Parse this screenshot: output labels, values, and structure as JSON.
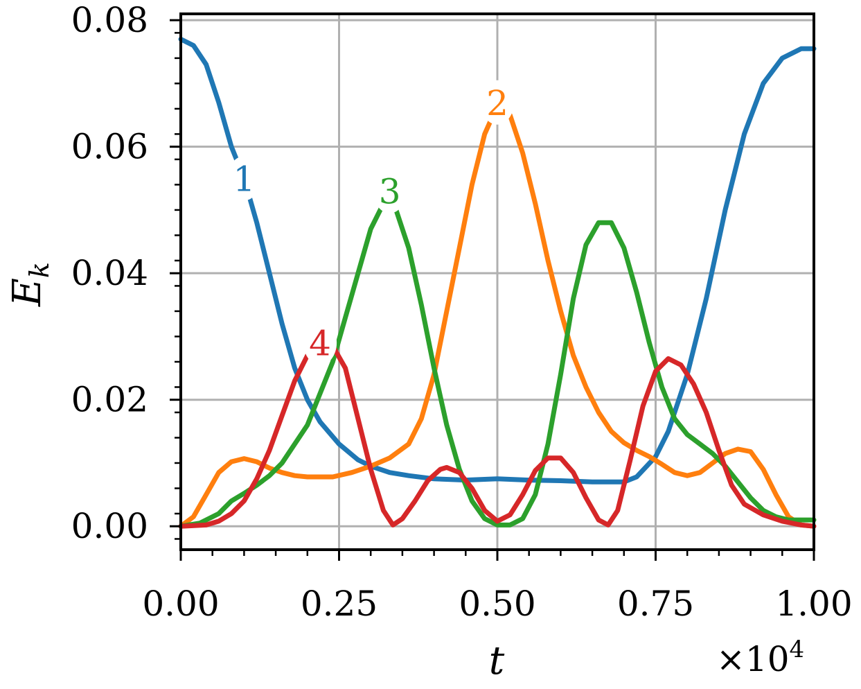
{
  "chart_data": {
    "type": "line",
    "xlabel": "t",
    "ylabel": "E",
    "ylabel_sub": "k",
    "x_multiplier": "×10",
    "x_multiplier_exp": "4",
    "xlim": [
      0,
      1.0
    ],
    "ylim": [
      -0.0037,
      0.081
    ],
    "x_ticks": [
      0.0,
      0.25,
      0.5,
      0.75,
      1.0
    ],
    "x_tick_labels": [
      "0.00",
      "0.25",
      "0.50",
      "0.75",
      "1.00"
    ],
    "y_ticks": [
      0.0,
      0.02,
      0.04,
      0.06,
      0.08
    ],
    "y_tick_labels": [
      "0.00",
      "0.02",
      "0.04",
      "0.06",
      "0.08"
    ],
    "grid": true,
    "series": [
      {
        "name": "1",
        "color": "#1f77b4",
        "label_at": [
          0.1,
          0.055
        ],
        "points": [
          [
            0.0,
            0.077
          ],
          [
            0.02,
            0.076
          ],
          [
            0.04,
            0.073
          ],
          [
            0.06,
            0.067
          ],
          [
            0.08,
            0.06
          ],
          [
            0.1,
            0.055
          ],
          [
            0.12,
            0.048
          ],
          [
            0.14,
            0.04
          ],
          [
            0.16,
            0.032
          ],
          [
            0.18,
            0.025
          ],
          [
            0.2,
            0.02
          ],
          [
            0.22,
            0.0165
          ],
          [
            0.25,
            0.013
          ],
          [
            0.28,
            0.0105
          ],
          [
            0.3,
            0.0095
          ],
          [
            0.33,
            0.0085
          ],
          [
            0.36,
            0.008
          ],
          [
            0.4,
            0.0075
          ],
          [
            0.45,
            0.0073
          ],
          [
            0.5,
            0.0075
          ],
          [
            0.55,
            0.0073
          ],
          [
            0.6,
            0.0072
          ],
          [
            0.65,
            0.007
          ],
          [
            0.7,
            0.007
          ],
          [
            0.72,
            0.0078
          ],
          [
            0.75,
            0.011
          ],
          [
            0.77,
            0.015
          ],
          [
            0.8,
            0.024
          ],
          [
            0.83,
            0.036
          ],
          [
            0.86,
            0.05
          ],
          [
            0.89,
            0.062
          ],
          [
            0.92,
            0.07
          ],
          [
            0.95,
            0.074
          ],
          [
            0.98,
            0.0755
          ],
          [
            1.0,
            0.0755
          ]
        ]
      },
      {
        "name": "2",
        "color": "#ff7f0e",
        "label_at": [
          0.5,
          0.067
        ],
        "points": [
          [
            0.0,
            0.0
          ],
          [
            0.02,
            0.0015
          ],
          [
            0.04,
            0.005
          ],
          [
            0.06,
            0.0085
          ],
          [
            0.08,
            0.0102
          ],
          [
            0.1,
            0.0107
          ],
          [
            0.12,
            0.0102
          ],
          [
            0.14,
            0.0092
          ],
          [
            0.16,
            0.0085
          ],
          [
            0.18,
            0.008
          ],
          [
            0.2,
            0.0078
          ],
          [
            0.24,
            0.0078
          ],
          [
            0.27,
            0.0085
          ],
          [
            0.3,
            0.0095
          ],
          [
            0.33,
            0.0108
          ],
          [
            0.36,
            0.013
          ],
          [
            0.38,
            0.017
          ],
          [
            0.4,
            0.024
          ],
          [
            0.42,
            0.034
          ],
          [
            0.44,
            0.044
          ],
          [
            0.46,
            0.054
          ],
          [
            0.48,
            0.062
          ],
          [
            0.5,
            0.0665
          ],
          [
            0.52,
            0.065
          ],
          [
            0.54,
            0.059
          ],
          [
            0.56,
            0.051
          ],
          [
            0.58,
            0.042
          ],
          [
            0.6,
            0.034
          ],
          [
            0.62,
            0.027
          ],
          [
            0.64,
            0.022
          ],
          [
            0.66,
            0.018
          ],
          [
            0.68,
            0.015
          ],
          [
            0.7,
            0.0132
          ],
          [
            0.72,
            0.012
          ],
          [
            0.74,
            0.011
          ],
          [
            0.76,
            0.0098
          ],
          [
            0.78,
            0.0085
          ],
          [
            0.8,
            0.008
          ],
          [
            0.82,
            0.0085
          ],
          [
            0.84,
            0.01
          ],
          [
            0.86,
            0.0115
          ],
          [
            0.88,
            0.0122
          ],
          [
            0.9,
            0.0118
          ],
          [
            0.92,
            0.009
          ],
          [
            0.94,
            0.005
          ],
          [
            0.96,
            0.0015
          ],
          [
            0.98,
            0.0002
          ],
          [
            1.0,
            0.0
          ]
        ]
      },
      {
        "name": "3",
        "color": "#2ca02c",
        "label_at": [
          0.33,
          0.053
        ],
        "points": [
          [
            0.0,
            0.0
          ],
          [
            0.03,
            0.0005
          ],
          [
            0.06,
            0.002
          ],
          [
            0.08,
            0.004
          ],
          [
            0.1,
            0.0052
          ],
          [
            0.12,
            0.0065
          ],
          [
            0.14,
            0.008
          ],
          [
            0.16,
            0.01
          ],
          [
            0.18,
            0.013
          ],
          [
            0.2,
            0.016
          ],
          [
            0.22,
            0.021
          ],
          [
            0.24,
            0.026
          ],
          [
            0.26,
            0.033
          ],
          [
            0.28,
            0.04
          ],
          [
            0.3,
            0.047
          ],
          [
            0.32,
            0.051
          ],
          [
            0.34,
            0.05
          ],
          [
            0.36,
            0.044
          ],
          [
            0.38,
            0.035
          ],
          [
            0.4,
            0.025
          ],
          [
            0.42,
            0.016
          ],
          [
            0.44,
            0.009
          ],
          [
            0.46,
            0.004
          ],
          [
            0.48,
            0.0012
          ],
          [
            0.5,
            0.0002
          ],
          [
            0.52,
            0.0002
          ],
          [
            0.54,
            0.0012
          ],
          [
            0.56,
            0.005
          ],
          [
            0.58,
            0.013
          ],
          [
            0.6,
            0.024
          ],
          [
            0.62,
            0.036
          ],
          [
            0.64,
            0.0445
          ],
          [
            0.66,
            0.048
          ],
          [
            0.68,
            0.048
          ],
          [
            0.7,
            0.044
          ],
          [
            0.72,
            0.037
          ],
          [
            0.74,
            0.029
          ],
          [
            0.76,
            0.022
          ],
          [
            0.78,
            0.017
          ],
          [
            0.8,
            0.0145
          ],
          [
            0.82,
            0.013
          ],
          [
            0.84,
            0.0115
          ],
          [
            0.86,
            0.0095
          ],
          [
            0.88,
            0.007
          ],
          [
            0.9,
            0.0045
          ],
          [
            0.92,
            0.0025
          ],
          [
            0.94,
            0.0015
          ],
          [
            0.96,
            0.001
          ],
          [
            1.0,
            0.001
          ]
        ]
      },
      {
        "name": "4",
        "color": "#d62728",
        "label_at": [
          0.22,
          0.029
        ],
        "points": [
          [
            0.0,
            0.0
          ],
          [
            0.04,
            0.0002
          ],
          [
            0.06,
            0.0008
          ],
          [
            0.08,
            0.002
          ],
          [
            0.1,
            0.004
          ],
          [
            0.12,
            0.0075
          ],
          [
            0.14,
            0.012
          ],
          [
            0.16,
            0.0175
          ],
          [
            0.18,
            0.023
          ],
          [
            0.2,
            0.027
          ],
          [
            0.22,
            0.029
          ],
          [
            0.24,
            0.0285
          ],
          [
            0.26,
            0.025
          ],
          [
            0.28,
            0.017
          ],
          [
            0.3,
            0.009
          ],
          [
            0.32,
            0.0025
          ],
          [
            0.335,
            0.0002
          ],
          [
            0.35,
            0.0012
          ],
          [
            0.37,
            0.004
          ],
          [
            0.39,
            0.0072
          ],
          [
            0.41,
            0.009
          ],
          [
            0.42,
            0.0093
          ],
          [
            0.44,
            0.0085
          ],
          [
            0.46,
            0.006
          ],
          [
            0.48,
            0.0025
          ],
          [
            0.5,
            0.0008
          ],
          [
            0.52,
            0.0018
          ],
          [
            0.54,
            0.005
          ],
          [
            0.56,
            0.0088
          ],
          [
            0.58,
            0.0108
          ],
          [
            0.6,
            0.0108
          ],
          [
            0.62,
            0.0085
          ],
          [
            0.64,
            0.0045
          ],
          [
            0.66,
            0.001
          ],
          [
            0.675,
            0.0002
          ],
          [
            0.69,
            0.0025
          ],
          [
            0.71,
            0.0105
          ],
          [
            0.73,
            0.019
          ],
          [
            0.75,
            0.0245
          ],
          [
            0.77,
            0.0265
          ],
          [
            0.79,
            0.0255
          ],
          [
            0.81,
            0.0225
          ],
          [
            0.83,
            0.018
          ],
          [
            0.85,
            0.012
          ],
          [
            0.87,
            0.0065
          ],
          [
            0.89,
            0.0035
          ],
          [
            0.92,
            0.0018
          ],
          [
            0.95,
            0.0008
          ],
          [
            0.98,
            0.0002
          ],
          [
            1.0,
            0.0
          ]
        ]
      }
    ]
  }
}
